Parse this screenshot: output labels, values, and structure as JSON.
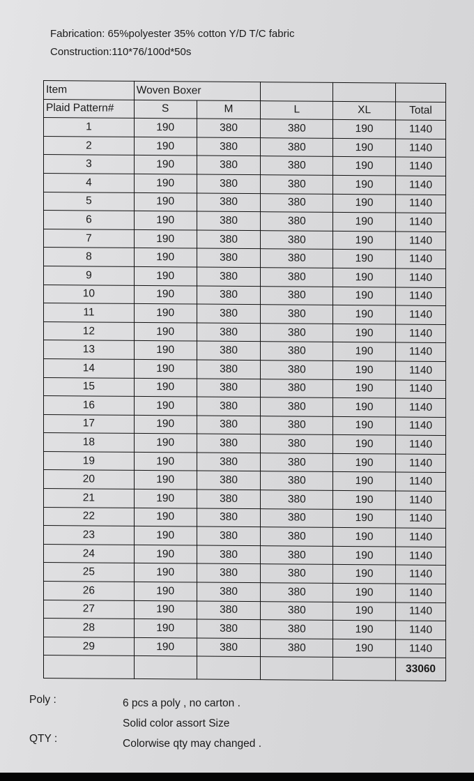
{
  "header": {
    "fabrication": "Fabrication: 65%polyester 35% cotton Y/D T/C fabric",
    "construction": "Construction:110*76/100d*50s"
  },
  "table": {
    "row1": [
      "Item",
      "Woven Boxer",
      "",
      "",
      ""
    ],
    "columns": [
      "Plaid Pattern#",
      "S",
      "M",
      "L",
      "XL",
      "Total"
    ],
    "rows": [
      [
        "1",
        "190",
        "380",
        "380",
        "190",
        "1140"
      ],
      [
        "2",
        "190",
        "380",
        "380",
        "190",
        "1140"
      ],
      [
        "3",
        "190",
        "380",
        "380",
        "190",
        "1140"
      ],
      [
        "4",
        "190",
        "380",
        "380",
        "190",
        "1140"
      ],
      [
        "5",
        "190",
        "380",
        "380",
        "190",
        "1140"
      ],
      [
        "6",
        "190",
        "380",
        "380",
        "190",
        "1140"
      ],
      [
        "7",
        "190",
        "380",
        "380",
        "190",
        "1140"
      ],
      [
        "8",
        "190",
        "380",
        "380",
        "190",
        "1140"
      ],
      [
        "9",
        "190",
        "380",
        "380",
        "190",
        "1140"
      ],
      [
        "10",
        "190",
        "380",
        "380",
        "190",
        "1140"
      ],
      [
        "11",
        "190",
        "380",
        "380",
        "190",
        "1140"
      ],
      [
        "12",
        "190",
        "380",
        "380",
        "190",
        "1140"
      ],
      [
        "13",
        "190",
        "380",
        "380",
        "190",
        "1140"
      ],
      [
        "14",
        "190",
        "380",
        "380",
        "190",
        "1140"
      ],
      [
        "15",
        "190",
        "380",
        "380",
        "190",
        "1140"
      ],
      [
        "16",
        "190",
        "380",
        "380",
        "190",
        "1140"
      ],
      [
        "17",
        "190",
        "380",
        "380",
        "190",
        "1140"
      ],
      [
        "18",
        "190",
        "380",
        "380",
        "190",
        "1140"
      ],
      [
        "19",
        "190",
        "380",
        "380",
        "190",
        "1140"
      ],
      [
        "20",
        "190",
        "380",
        "380",
        "190",
        "1140"
      ],
      [
        "21",
        "190",
        "380",
        "380",
        "190",
        "1140"
      ],
      [
        "22",
        "190",
        "380",
        "380",
        "190",
        "1140"
      ],
      [
        "23",
        "190",
        "380",
        "380",
        "190",
        "1140"
      ],
      [
        "24",
        "190",
        "380",
        "380",
        "190",
        "1140"
      ],
      [
        "25",
        "190",
        "380",
        "380",
        "190",
        "1140"
      ],
      [
        "26",
        "190",
        "380",
        "380",
        "190",
        "1140"
      ],
      [
        "27",
        "190",
        "380",
        "380",
        "190",
        "1140"
      ],
      [
        "28",
        "190",
        "380",
        "380",
        "190",
        "1140"
      ],
      [
        "29",
        "190",
        "380",
        "380",
        "190",
        "1140"
      ]
    ],
    "grand_total": "33060"
  },
  "notes": {
    "poly_label": "Poly :",
    "poly_text": "6 pcs a poly , no carton .",
    "assort_text": "Solid color assort Size",
    "qty_label": "QTY :",
    "qty_text": "Colorwise qty may changed ."
  }
}
